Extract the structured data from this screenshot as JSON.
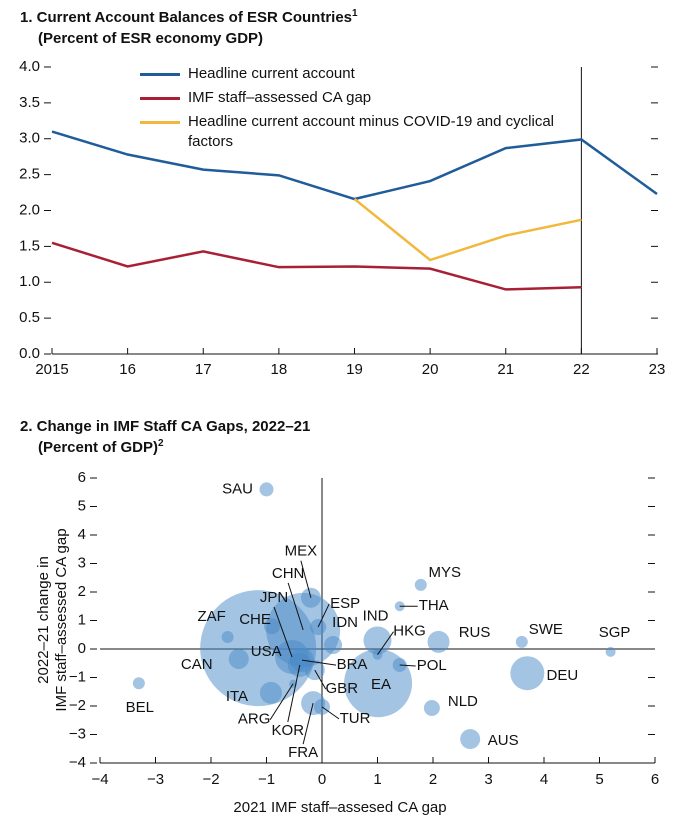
{
  "chart_data": [
    {
      "type": "line",
      "title": "1. Current Account Balances of ESR Countries",
      "title_note": "1",
      "subtitle": "(Percent of ESR economy GDP)",
      "x": [
        2015,
        2016,
        2017,
        2018,
        2019,
        2020,
        2021,
        2022,
        2023
      ],
      "xlim": [
        2015,
        2023
      ],
      "xticks": [
        2015,
        {
          "value": 2016,
          "label": "16"
        },
        {
          "value": 2017,
          "label": "17"
        },
        {
          "value": 2018,
          "label": "18"
        },
        {
          "value": 2019,
          "label": "19"
        },
        {
          "value": 2020,
          "label": "20"
        },
        {
          "value": 2021,
          "label": "21"
        },
        {
          "value": 2022,
          "label": "22"
        },
        {
          "value": 2023,
          "label": "23"
        }
      ],
      "ylim": [
        0,
        4
      ],
      "yticks": [
        {
          "value": 0,
          "label": "0.0"
        },
        0.5,
        {
          "value": 1,
          "label": "1.0"
        },
        1.5,
        {
          "value": 2,
          "label": "2.0"
        },
        2.5,
        {
          "value": 3,
          "label": "3.0"
        },
        3.5,
        {
          "value": 4,
          "label": "4.0"
        }
      ],
      "marker_x": 2022,
      "series": [
        {
          "name": "Headline current account",
          "color": "#1f5c99",
          "values": [
            3.1,
            2.78,
            2.57,
            2.49,
            2.16,
            2.41,
            2.87,
            2.99,
            2.23
          ]
        },
        {
          "name": "IMF staff–assessed CA gap",
          "color": "#a82035",
          "values": [
            1.55,
            1.22,
            1.43,
            1.21,
            1.22,
            1.19,
            0.9,
            0.93,
            null
          ]
        },
        {
          "name": "Headline current account minus COVID-19 and cyclical factors",
          "color": "#f2b83d",
          "values": [
            null,
            null,
            null,
            null,
            2.16,
            1.31,
            1.65,
            1.87,
            null
          ]
        }
      ]
    },
    {
      "type": "bubble",
      "title": "2. Change in IMF Staff CA Gaps, 2022–21",
      "subtitle": "(Percent of GDP)",
      "subtitle_note": "2",
      "xlabel": "2021 IMF staff–assesed CA gap",
      "ylabel": [
        "2022–21 change in",
        "IMF staff–assessed CA gap"
      ],
      "color": "#4a89c8",
      "xlim": [
        -4,
        6
      ],
      "xticks": [
        {
          "value": -4,
          "label": "−4"
        },
        {
          "value": -3,
          "label": "−3"
        },
        {
          "value": -2,
          "label": "−2"
        },
        {
          "value": -1,
          "label": "−1"
        },
        0,
        1,
        2,
        3,
        4,
        5,
        6
      ],
      "ylim": [
        -4,
        6
      ],
      "yticks": [
        {
          "value": -4,
          "label": "−4"
        },
        {
          "value": -3,
          "label": "−3"
        },
        {
          "value": -2,
          "label": "−2"
        },
        {
          "value": -1,
          "label": "−1"
        },
        0,
        1,
        2,
        3,
        4,
        5,
        6
      ],
      "labels": [
        "SAU",
        "MEX",
        "CHN",
        "JPN",
        "ESP",
        "CHE",
        "ZAF",
        "USA",
        "CAN",
        "ITA",
        "ARG",
        "KOR",
        "FRA",
        "BRA",
        "GBR",
        "TUR",
        "IDN",
        "IND",
        "HKG",
        "EA",
        "THA",
        "MYS",
        "RUS",
        "POL",
        "NLD",
        "AUS",
        "SWE",
        "DEU",
        "SGP",
        "BEL"
      ],
      "x": [
        -1.0,
        -0.2,
        -0.34,
        -0.54,
        -0.07,
        -0.9,
        -1.7,
        -1.15,
        -1.5,
        -0.92,
        -0.52,
        -0.4,
        -0.16,
        -0.36,
        -0.13,
        0.0,
        0.2,
        1.0,
        1.0,
        1.01,
        1.4,
        1.78,
        2.1,
        1.4,
        1.98,
        2.67,
        3.6,
        3.7,
        5.2,
        -3.3
      ],
      "y": [
        5.6,
        1.8,
        0.67,
        -0.28,
        0.77,
        0.8,
        0.42,
        0.03,
        -0.35,
        -1.54,
        -1.22,
        -0.56,
        -1.9,
        -0.39,
        -0.74,
        -2.03,
        0.14,
        0.3,
        -0.2,
        -1.2,
        1.5,
        2.25,
        0.25,
        -0.56,
        -2.07,
        -3.16,
        0.25,
        -0.85,
        -0.1,
        -1.2
      ],
      "sizes": [
        7,
        10,
        37,
        17,
        8,
        8,
        6,
        58,
        10,
        11,
        4,
        12,
        12,
        12,
        10,
        8,
        9,
        14,
        5,
        34,
        5,
        6,
        11,
        7,
        8,
        10,
        6,
        17,
        5,
        6
      ]
    }
  ]
}
